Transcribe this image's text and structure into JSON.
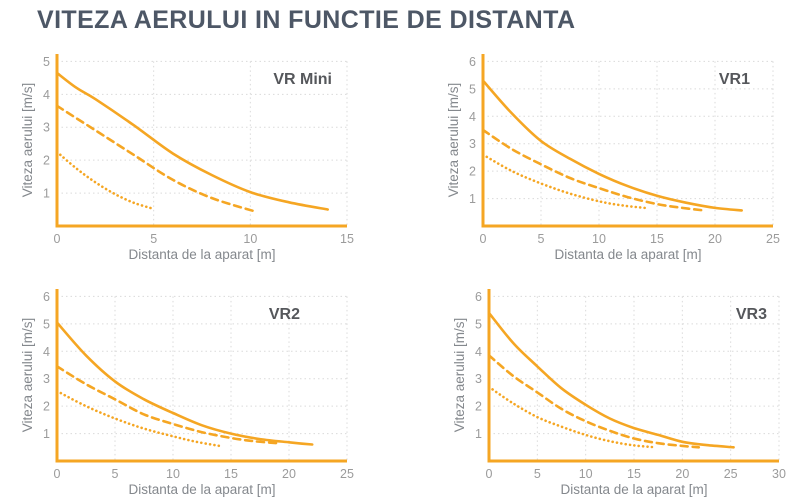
{
  "title": "VITEZA AERULUI IN FUNCTIE DE DISTANTA",
  "colors": {
    "accent": "#F5A623",
    "grid": "#DADADA",
    "tick_text": "#9B9B9B",
    "axis_label_text": "#84888D",
    "panel_label_text": "#55575B",
    "title_text": "#4D5766",
    "background": "#FFFFFF"
  },
  "chart_data": [
    {
      "id": "vr-mini",
      "type": "line",
      "panel_label": "VR Mini",
      "xlabel": "Distanta de la aparat [m]",
      "ylabel": "Viteza aerului [m/s]",
      "xlim": [
        0,
        15
      ],
      "ylim": [
        0,
        5
      ],
      "xticks": [
        0,
        5,
        10,
        15
      ],
      "yticks": [
        1,
        2,
        3,
        4,
        5
      ],
      "grid": true,
      "legend": "none",
      "label_inset": 15,
      "series": [
        {
          "name": "solid-curve",
          "line_style": "solid",
          "points": [
            [
              0,
              4.65
            ],
            [
              1,
              4.2
            ],
            [
              2,
              3.85
            ],
            [
              4,
              3.05
            ],
            [
              6,
              2.2
            ],
            [
              8,
              1.55
            ],
            [
              10,
              1.03
            ],
            [
              12,
              0.72
            ],
            [
              14,
              0.5
            ]
          ]
        },
        {
          "name": "dashed-curve",
          "line_style": "dashed",
          "points": [
            [
              0,
              3.65
            ],
            [
              2,
              2.9
            ],
            [
              4,
              2.15
            ],
            [
              6,
              1.4
            ],
            [
              8,
              0.85
            ],
            [
              10.2,
              0.45
            ]
          ]
        },
        {
          "name": "dotted-curve",
          "line_style": "dotted",
          "points": [
            [
              0,
              2.25
            ],
            [
              1,
              1.75
            ],
            [
              2,
              1.32
            ],
            [
              3,
              0.97
            ],
            [
              4,
              0.7
            ],
            [
              5,
              0.52
            ]
          ]
        }
      ]
    },
    {
      "id": "vr1",
      "type": "line",
      "panel_label": "VR1",
      "xlabel": "Distanta de la aparat [m]",
      "ylabel": "Viteza aerului [m/s]",
      "xlim": [
        0,
        25
      ],
      "ylim": [
        0,
        6
      ],
      "xticks": [
        0,
        5,
        10,
        15,
        20,
        25
      ],
      "yticks": [
        1,
        2,
        3,
        4,
        5,
        6
      ],
      "grid": true,
      "legend": "none",
      "label_inset": 23,
      "series": [
        {
          "name": "solid-curve",
          "line_style": "solid",
          "points": [
            [
              0,
              5.3
            ],
            [
              2.5,
              4.1
            ],
            [
              5,
              3.1
            ],
            [
              7.5,
              2.45
            ],
            [
              10,
              1.9
            ],
            [
              12.5,
              1.45
            ],
            [
              15,
              1.1
            ],
            [
              17.5,
              0.85
            ],
            [
              20,
              0.66
            ],
            [
              22.3,
              0.57
            ]
          ]
        },
        {
          "name": "dashed-curve",
          "line_style": "dashed",
          "points": [
            [
              0,
              3.5
            ],
            [
              2.5,
              2.8
            ],
            [
              5,
              2.25
            ],
            [
              7.5,
              1.75
            ],
            [
              10,
              1.38
            ],
            [
              12.5,
              1.05
            ],
            [
              15,
              0.8
            ],
            [
              17,
              0.67
            ],
            [
              19,
              0.57
            ]
          ]
        },
        {
          "name": "dotted-curve",
          "line_style": "dotted",
          "points": [
            [
              0,
              2.6
            ],
            [
              2.5,
              2.0
            ],
            [
              5,
              1.55
            ],
            [
              7.5,
              1.18
            ],
            [
              10,
              0.9
            ],
            [
              12,
              0.75
            ],
            [
              14.2,
              0.65
            ]
          ]
        }
      ]
    },
    {
      "id": "vr2",
      "type": "line",
      "panel_label": "VR2",
      "xlabel": "Distanta de la aparat [m]",
      "ylabel": "Viteza aerului [m/s]",
      "xlim": [
        0,
        25
      ],
      "ylim": [
        0,
        6
      ],
      "xticks": [
        0,
        5,
        10,
        15,
        20,
        25
      ],
      "yticks": [
        1,
        2,
        3,
        4,
        5,
        6
      ],
      "grid": true,
      "legend": "none",
      "label_inset": 47,
      "series": [
        {
          "name": "solid-curve",
          "line_style": "solid",
          "points": [
            [
              0,
              5.05
            ],
            [
              2.5,
              3.85
            ],
            [
              5,
              2.9
            ],
            [
              7.5,
              2.25
            ],
            [
              10,
              1.75
            ],
            [
              12.5,
              1.3
            ],
            [
              15,
              1.0
            ],
            [
              17.5,
              0.8
            ],
            [
              20,
              0.68
            ],
            [
              22,
              0.6
            ]
          ]
        },
        {
          "name": "dashed-curve",
          "line_style": "dashed",
          "points": [
            [
              0,
              3.45
            ],
            [
              2.5,
              2.8
            ],
            [
              5,
              2.25
            ],
            [
              7.5,
              1.7
            ],
            [
              10,
              1.35
            ],
            [
              12.5,
              1.05
            ],
            [
              15,
              0.84
            ],
            [
              17,
              0.72
            ],
            [
              19,
              0.65
            ]
          ]
        },
        {
          "name": "dotted-curve",
          "line_style": "dotted",
          "points": [
            [
              0,
              2.55
            ],
            [
              2.5,
              2.0
            ],
            [
              5,
              1.55
            ],
            [
              7.5,
              1.18
            ],
            [
              10,
              0.9
            ],
            [
              12,
              0.7
            ],
            [
              14,
              0.55
            ]
          ]
        }
      ]
    },
    {
      "id": "vr3",
      "type": "line",
      "panel_label": "VR3",
      "xlabel": "Distanta de la aparat [m]",
      "ylabel": "Viteza aerului [m/s]",
      "xlim": [
        0,
        30
      ],
      "ylim": [
        0,
        6
      ],
      "xticks": [
        0,
        5,
        10,
        15,
        20,
        25,
        30
      ],
      "yticks": [
        1,
        2,
        3,
        4,
        5,
        6
      ],
      "grid": true,
      "legend": "none",
      "label_inset": 12,
      "series": [
        {
          "name": "solid-curve",
          "line_style": "solid",
          "points": [
            [
              0,
              5.4
            ],
            [
              2.5,
              4.3
            ],
            [
              5,
              3.45
            ],
            [
              7.5,
              2.65
            ],
            [
              10,
              2.05
            ],
            [
              12.5,
              1.55
            ],
            [
              15,
              1.2
            ],
            [
              17.5,
              0.95
            ],
            [
              20,
              0.7
            ],
            [
              22.5,
              0.58
            ],
            [
              25.3,
              0.5
            ]
          ]
        },
        {
          "name": "dashed-curve",
          "line_style": "dashed",
          "points": [
            [
              0,
              3.85
            ],
            [
              2.5,
              3.1
            ],
            [
              5,
              2.5
            ],
            [
              7.5,
              1.9
            ],
            [
              10,
              1.45
            ],
            [
              12.5,
              1.1
            ],
            [
              15,
              0.82
            ],
            [
              17.5,
              0.65
            ],
            [
              20,
              0.55
            ],
            [
              21.7,
              0.5
            ]
          ]
        },
        {
          "name": "dotted-curve",
          "line_style": "dotted",
          "points": [
            [
              0,
              2.7
            ],
            [
              2.5,
              2.1
            ],
            [
              5,
              1.6
            ],
            [
              7.5,
              1.25
            ],
            [
              10,
              0.95
            ],
            [
              12.5,
              0.72
            ],
            [
              15,
              0.57
            ],
            [
              17.3,
              0.5
            ]
          ]
        }
      ]
    }
  ]
}
